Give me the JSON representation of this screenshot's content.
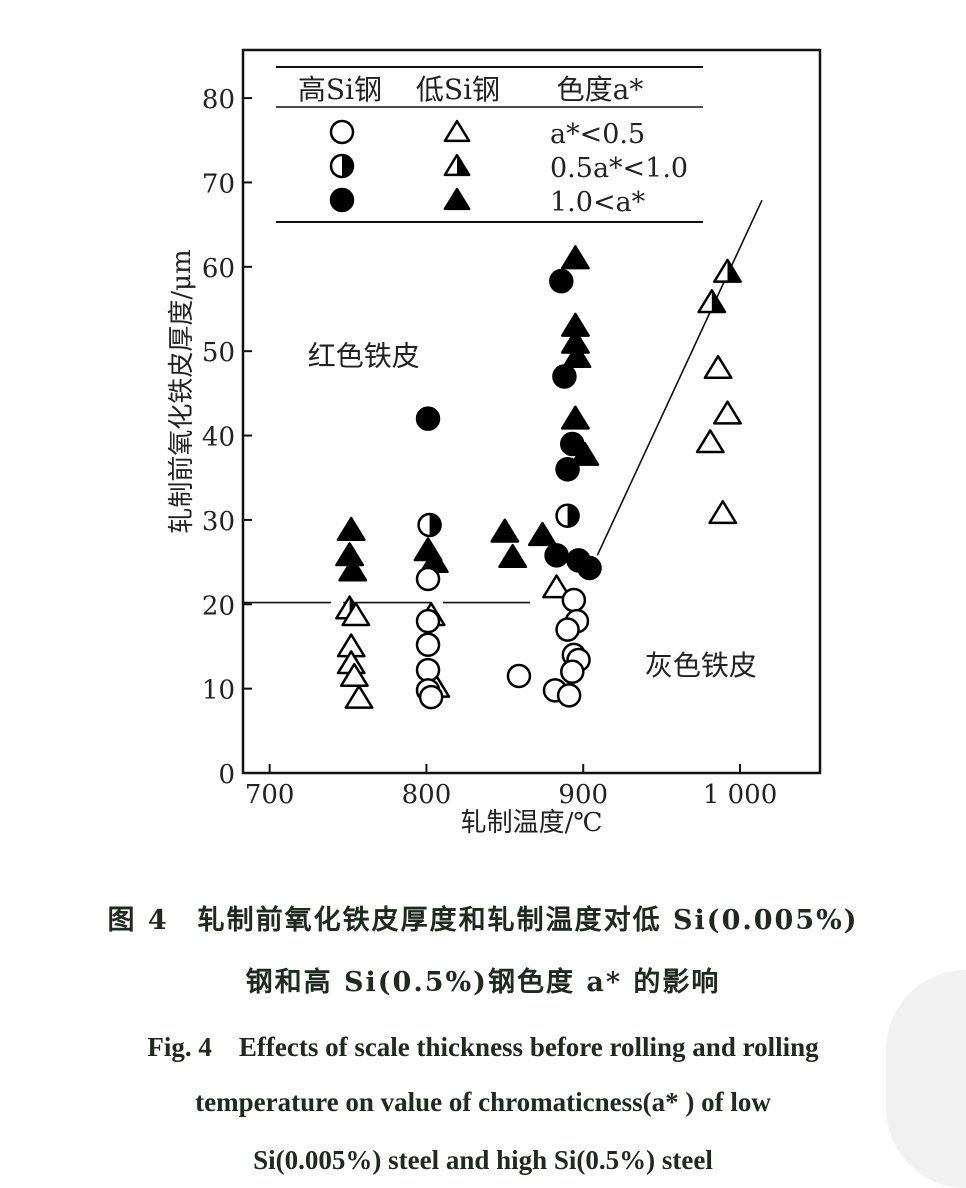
{
  "chart_data": {
    "type": "scatter",
    "xlabel": "轧制温度/℃",
    "ylabel": "轧制前氧化铁皮厚度/μm",
    "xlim": [
      683,
      1051
    ],
    "ylim": [
      0,
      85.7
    ],
    "x_ticks": [
      700,
      800,
      900,
      1000
    ],
    "x_tick_labels": [
      "700",
      "800",
      "900",
      "1 000"
    ],
    "y_ticks": [
      0,
      10,
      20,
      30,
      40,
      50,
      60,
      70,
      80
    ],
    "y_tick_labels": [
      "0",
      "10",
      "20",
      "30",
      "40",
      "50",
      "60",
      "70",
      "80"
    ],
    "grid": false,
    "legend": {
      "placement": "top-left",
      "headers": [
        "高Si钢",
        "低Si钢",
        "色度a*"
      ],
      "rows": [
        {
          "label": "a*<0.5",
          "fill": "open"
        },
        {
          "label": "0.5a*<1.0",
          "fill": "half"
        },
        {
          "label": "1.0<a*",
          "fill": "filled"
        }
      ]
    },
    "annotations": [
      {
        "text": "红色铁皮",
        "x": 760,
        "y": 49.5
      },
      {
        "text": "灰色铁皮",
        "x": 975,
        "y": 12.8
      }
    ],
    "boundary_lines": [
      {
        "name": "horizontal-boundary",
        "points": [
          [
            683,
            20.2
          ],
          [
            866,
            20.2
          ]
        ],
        "dashed": true
      },
      {
        "name": "diagonal-boundary",
        "points": [
          [
            909,
            25.8
          ],
          [
            1014,
            67.9
          ]
        ],
        "dashed": false
      }
    ],
    "series": [
      {
        "name": "低Si钢",
        "marker": "triangle",
        "points": [
          {
            "x": 752,
            "y": 28.8,
            "fill": "filled"
          },
          {
            "x": 751,
            "y": 25.8,
            "fill": "filled"
          },
          {
            "x": 753,
            "y": 24.0,
            "fill": "filled"
          },
          {
            "x": 751,
            "y": 19.5,
            "fill": "half"
          },
          {
            "x": 755,
            "y": 18.7,
            "fill": "open"
          },
          {
            "x": 752,
            "y": 15.0,
            "fill": "open"
          },
          {
            "x": 752,
            "y": 13.0,
            "fill": "open"
          },
          {
            "x": 754,
            "y": 11.5,
            "fill": "open"
          },
          {
            "x": 757,
            "y": 8.9,
            "fill": "open"
          },
          {
            "x": 801,
            "y": 26.4,
            "fill": "filled"
          },
          {
            "x": 805,
            "y": 25.0,
            "fill": "filled"
          },
          {
            "x": 803,
            "y": 18.7,
            "fill": "open"
          },
          {
            "x": 806,
            "y": 10.2,
            "fill": "open"
          },
          {
            "x": 850,
            "y": 28.6,
            "fill": "filled"
          },
          {
            "x": 855,
            "y": 25.6,
            "fill": "filled"
          },
          {
            "x": 874,
            "y": 28.2,
            "fill": "filled"
          },
          {
            "x": 895,
            "y": 61.0,
            "fill": "filled"
          },
          {
            "x": 895,
            "y": 53.0,
            "fill": "filled"
          },
          {
            "x": 895,
            "y": 51.0,
            "fill": "filled"
          },
          {
            "x": 896,
            "y": 49.3,
            "fill": "filled"
          },
          {
            "x": 895,
            "y": 42.0,
            "fill": "filled"
          },
          {
            "x": 901,
            "y": 37.7,
            "fill": "filled"
          },
          {
            "x": 883,
            "y": 22.0,
            "fill": "open"
          },
          {
            "x": 992,
            "y": 59.4,
            "fill": "half"
          },
          {
            "x": 982,
            "y": 55.8,
            "fill": "half"
          },
          {
            "x": 986,
            "y": 48.0,
            "fill": "open"
          },
          {
            "x": 992,
            "y": 42.6,
            "fill": "open"
          },
          {
            "x": 981,
            "y": 39.2,
            "fill": "open"
          },
          {
            "x": 989,
            "y": 30.8,
            "fill": "open"
          }
        ]
      },
      {
        "name": "高Si钢",
        "marker": "circle",
        "points": [
          {
            "x": 801,
            "y": 42.0,
            "fill": "filled"
          },
          {
            "x": 802,
            "y": 29.4,
            "fill": "half"
          },
          {
            "x": 801,
            "y": 23.0,
            "fill": "open"
          },
          {
            "x": 801,
            "y": 18.0,
            "fill": "open"
          },
          {
            "x": 801,
            "y": 15.2,
            "fill": "open"
          },
          {
            "x": 801,
            "y": 12.2,
            "fill": "open"
          },
          {
            "x": 801,
            "y": 9.8,
            "fill": "open"
          },
          {
            "x": 803,
            "y": 9.0,
            "fill": "open"
          },
          {
            "x": 859,
            "y": 11.5,
            "fill": "open"
          },
          {
            "x": 886,
            "y": 58.3,
            "fill": "filled"
          },
          {
            "x": 888,
            "y": 47.0,
            "fill": "filled"
          },
          {
            "x": 893,
            "y": 39.0,
            "fill": "filled"
          },
          {
            "x": 890,
            "y": 36.0,
            "fill": "filled"
          },
          {
            "x": 890,
            "y": 30.5,
            "fill": "half"
          },
          {
            "x": 883,
            "y": 25.8,
            "fill": "filled"
          },
          {
            "x": 897,
            "y": 25.2,
            "fill": "filled"
          },
          {
            "x": 904,
            "y": 24.3,
            "fill": "filled"
          },
          {
            "x": 894,
            "y": 20.5,
            "fill": "open"
          },
          {
            "x": 896,
            "y": 18.0,
            "fill": "open"
          },
          {
            "x": 890,
            "y": 17.0,
            "fill": "open"
          },
          {
            "x": 894,
            "y": 14.0,
            "fill": "open"
          },
          {
            "x": 897,
            "y": 13.4,
            "fill": "open"
          },
          {
            "x": 893,
            "y": 12.0,
            "fill": "open"
          },
          {
            "x": 882,
            "y": 9.8,
            "fill": "open"
          },
          {
            "x": 891,
            "y": 9.2,
            "fill": "open"
          }
        ]
      }
    ]
  },
  "caption": {
    "cn_line1": "图 4　轧制前氧化铁皮厚度和轧制温度对低 Si(0.005%)",
    "cn_line2": "钢和高 Si(0.5%)钢色度 a* 的影响",
    "en_line1": "Fig. 4　Effects of scale thickness before rolling and rolling",
    "en_line2": "temperature on value of chromaticness(a* ) of low",
    "en_line3": "Si(0.005%) steel and high Si(0.5%) steel"
  }
}
